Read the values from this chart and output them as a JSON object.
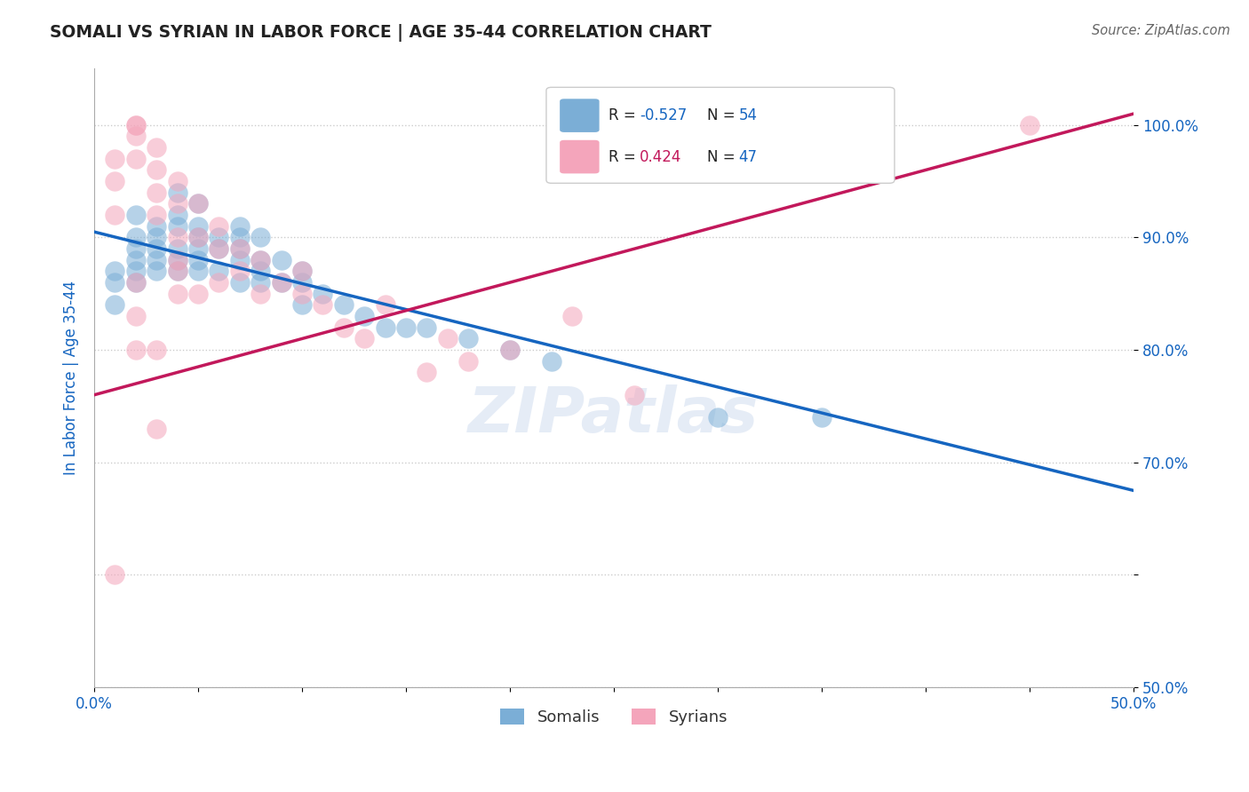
{
  "title": "SOMALI VS SYRIAN IN LABOR FORCE | AGE 35-44 CORRELATION CHART",
  "source_text": "Source: ZipAtlas.com",
  "ylabel": "In Labor Force | Age 35-44",
  "xlim": [
    0.0,
    0.5
  ],
  "ylim": [
    0.5,
    1.05
  ],
  "xticks": [
    0.0,
    0.05,
    0.1,
    0.15,
    0.2,
    0.25,
    0.3,
    0.35,
    0.4,
    0.45,
    0.5
  ],
  "xtick_labels": [
    "0.0%",
    "",
    "",
    "",
    "",
    "",
    "",
    "",
    "",
    "",
    "50.0%"
  ],
  "yticks": [
    0.5,
    0.6,
    0.7,
    0.8,
    0.9,
    1.0
  ],
  "ytick_labels": [
    "50.0%",
    "",
    "70.0%",
    "80.0%",
    "90.0%",
    "100.0%"
  ],
  "watermark": "ZIPatlas",
  "legend_R_somali": "-0.527",
  "legend_N_somali": "54",
  "legend_R_syrian": "0.424",
  "legend_N_syrian": "47",
  "somali_color": "#7baed6",
  "syrian_color": "#f4a5bb",
  "somali_line_color": "#1565c0",
  "syrian_line_color": "#c2185b",
  "background_color": "#ffffff",
  "title_color": "#222222",
  "axis_color": "#1565c0",
  "grid_color": "#cccccc",
  "somali_x": [
    0.01,
    0.01,
    0.01,
    0.02,
    0.02,
    0.02,
    0.02,
    0.02,
    0.02,
    0.03,
    0.03,
    0.03,
    0.03,
    0.03,
    0.04,
    0.04,
    0.04,
    0.04,
    0.04,
    0.04,
    0.05,
    0.05,
    0.05,
    0.05,
    0.05,
    0.05,
    0.06,
    0.06,
    0.06,
    0.07,
    0.07,
    0.07,
    0.07,
    0.07,
    0.08,
    0.08,
    0.08,
    0.08,
    0.09,
    0.09,
    0.1,
    0.1,
    0.1,
    0.11,
    0.12,
    0.13,
    0.14,
    0.15,
    0.16,
    0.18,
    0.2,
    0.22,
    0.3,
    0.35
  ],
  "somali_y": [
    0.87,
    0.86,
    0.84,
    0.92,
    0.9,
    0.89,
    0.88,
    0.87,
    0.86,
    0.91,
    0.9,
    0.89,
    0.88,
    0.87,
    0.94,
    0.92,
    0.91,
    0.89,
    0.88,
    0.87,
    0.93,
    0.91,
    0.9,
    0.89,
    0.88,
    0.87,
    0.9,
    0.89,
    0.87,
    0.91,
    0.9,
    0.89,
    0.88,
    0.86,
    0.9,
    0.88,
    0.87,
    0.86,
    0.88,
    0.86,
    0.87,
    0.86,
    0.84,
    0.85,
    0.84,
    0.83,
    0.82,
    0.82,
    0.82,
    0.81,
    0.8,
    0.79,
    0.74,
    0.74
  ],
  "syrian_x": [
    0.01,
    0.01,
    0.01,
    0.01,
    0.02,
    0.02,
    0.02,
    0.02,
    0.02,
    0.02,
    0.02,
    0.03,
    0.03,
    0.03,
    0.03,
    0.03,
    0.03,
    0.04,
    0.04,
    0.04,
    0.04,
    0.04,
    0.04,
    0.05,
    0.05,
    0.05,
    0.06,
    0.06,
    0.06,
    0.07,
    0.07,
    0.08,
    0.08,
    0.09,
    0.1,
    0.1,
    0.11,
    0.12,
    0.13,
    0.14,
    0.16,
    0.17,
    0.18,
    0.2,
    0.23,
    0.26,
    0.45
  ],
  "syrian_y": [
    0.97,
    0.95,
    0.92,
    0.6,
    1.0,
    1.0,
    0.99,
    0.97,
    0.86,
    0.83,
    0.8,
    0.98,
    0.96,
    0.94,
    0.92,
    0.8,
    0.73,
    0.95,
    0.93,
    0.9,
    0.88,
    0.87,
    0.85,
    0.93,
    0.9,
    0.85,
    0.91,
    0.89,
    0.86,
    0.89,
    0.87,
    0.88,
    0.85,
    0.86,
    0.87,
    0.85,
    0.84,
    0.82,
    0.81,
    0.84,
    0.78,
    0.81,
    0.79,
    0.8,
    0.83,
    0.76,
    1.0
  ],
  "somali_line_x0": 0.0,
  "somali_line_y0": 0.905,
  "somali_line_x1": 0.5,
  "somali_line_y1": 0.675,
  "syrian_line_x0": 0.0,
  "syrian_line_y0": 0.76,
  "syrian_line_x1": 0.5,
  "syrian_line_y1": 1.01
}
